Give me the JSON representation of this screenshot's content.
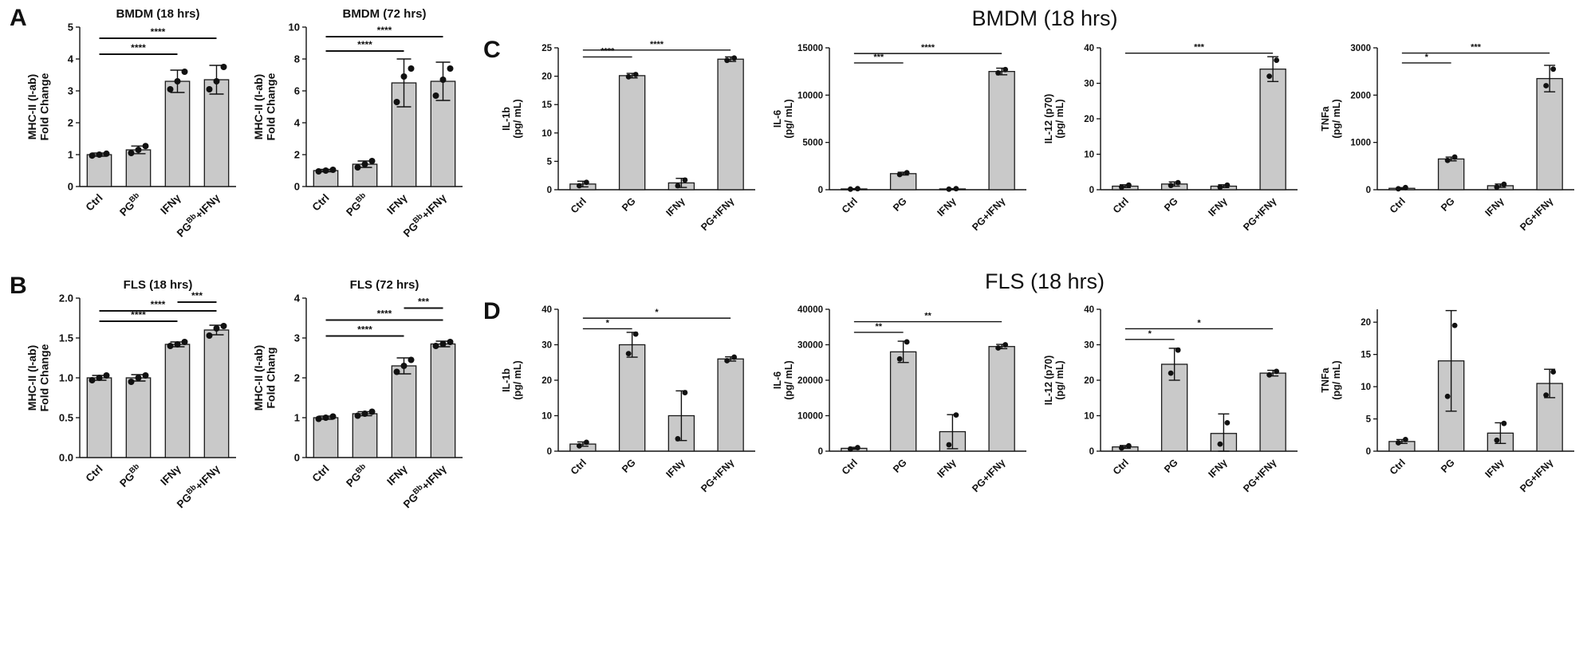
{
  "figure": {
    "background": "#ffffff",
    "bar_fill": "#c9c9c9",
    "bar_stroke": "#1a1a1a",
    "point_color": "#111111",
    "axis_color": "#111111"
  },
  "panels": {
    "A": {
      "label": "A"
    },
    "B": {
      "label": "B"
    },
    "C": {
      "label": "C",
      "title": "BMDM (18 hrs)"
    },
    "D": {
      "label": "D",
      "title": "FLS (18 hrs)"
    }
  },
  "chart_data": [
    {
      "id": "A1",
      "panel": "A",
      "type": "bar",
      "title": "BMDM (18 hrs)",
      "ylabel": [
        "MHC-II (I-ab)",
        "Fold Change"
      ],
      "ylim": [
        0,
        5
      ],
      "yticks": [
        0,
        1,
        2,
        3,
        4,
        5
      ],
      "ytick_labels": [
        "0",
        "1",
        "2",
        "3",
        "4",
        "5"
      ],
      "categories": [
        "Ctrl",
        "PG^Bb",
        "IFNγ",
        "PG^Bb+IFNγ"
      ],
      "values": [
        1.0,
        1.15,
        3.3,
        3.35
      ],
      "errors": [
        0.05,
        0.12,
        0.35,
        0.45
      ],
      "points": [
        [
          0.97,
          1.0,
          1.03
        ],
        [
          1.05,
          1.15,
          1.27
        ],
        [
          3.05,
          3.3,
          3.6
        ],
        [
          3.05,
          3.3,
          3.75
        ]
      ],
      "sig": [
        {
          "from": 0,
          "to": 2,
          "label": "****",
          "y": 4.15
        },
        {
          "from": 0,
          "to": 3,
          "label": "****",
          "y": 4.65
        }
      ]
    },
    {
      "id": "A2",
      "panel": "A",
      "type": "bar",
      "title": "BMDM (72 hrs)",
      "ylabel": [
        "MHC-II (I-ab)",
        "Fold Change"
      ],
      "ylim": [
        0,
        10
      ],
      "yticks": [
        0,
        2,
        4,
        6,
        8,
        10
      ],
      "ytick_labels": [
        "0",
        "2",
        "4",
        "6",
        "8",
        "10"
      ],
      "categories": [
        "Ctrl",
        "PG^Bb",
        "IFNγ",
        "PG^Bb+IFNγ"
      ],
      "values": [
        1.0,
        1.4,
        6.5,
        6.6
      ],
      "errors": [
        0.08,
        0.2,
        1.5,
        1.2
      ],
      "points": [
        [
          0.95,
          1.0,
          1.05
        ],
        [
          1.2,
          1.4,
          1.6
        ],
        [
          5.3,
          6.9,
          7.4
        ],
        [
          5.7,
          6.7,
          7.4
        ]
      ],
      "sig": [
        {
          "from": 0,
          "to": 2,
          "label": "****",
          "y": 8.5
        },
        {
          "from": 0,
          "to": 3,
          "label": "****",
          "y": 9.4
        }
      ]
    },
    {
      "id": "B1",
      "panel": "B",
      "type": "bar",
      "title": "FLS (18 hrs)",
      "ylabel": [
        "MHC-II (I-ab)",
        "Fold Change"
      ],
      "ylim": [
        0,
        2
      ],
      "yticks": [
        0,
        0.5,
        1,
        1.5,
        2
      ],
      "ytick_labels": [
        "0.0",
        "0.5",
        "1.0",
        "1.5",
        "2.0"
      ],
      "categories": [
        "Ctrl",
        "PG^Bb",
        "IFNγ",
        "PG^Bb+IFNγ"
      ],
      "values": [
        1.0,
        1.0,
        1.42,
        1.6
      ],
      "errors": [
        0.03,
        0.04,
        0.03,
        0.06
      ],
      "points": [
        [
          0.97,
          1.0,
          1.03
        ],
        [
          0.95,
          1.0,
          1.03
        ],
        [
          1.4,
          1.42,
          1.45
        ],
        [
          1.53,
          1.62,
          1.65
        ]
      ],
      "sig": [
        {
          "from": 0,
          "to": 2,
          "label": "****",
          "y": 1.71
        },
        {
          "from": 0,
          "to": 3,
          "label": "****",
          "y": 1.84
        },
        {
          "from": 2,
          "to": 3,
          "label": "***",
          "y": 1.95
        }
      ]
    },
    {
      "id": "B2",
      "panel": "B",
      "type": "bar",
      "title": "FLS (72 hrs)",
      "ylabel": [
        "MHC-II (I-ab)",
        "Fold Chang"
      ],
      "ylim": [
        0,
        4
      ],
      "yticks": [
        0,
        1,
        2,
        3,
        4
      ],
      "ytick_labels": [
        "0",
        "1",
        "2",
        "3",
        "4"
      ],
      "categories": [
        "Ctrl",
        "PG^Bb",
        "IFNγ",
        "PG^Bb+IFNγ"
      ],
      "values": [
        1.0,
        1.1,
        2.3,
        2.85
      ],
      "errors": [
        0.04,
        0.05,
        0.2,
        0.07
      ],
      "points": [
        [
          0.97,
          1.0,
          1.03
        ],
        [
          1.05,
          1.1,
          1.15
        ],
        [
          2.15,
          2.3,
          2.45
        ],
        [
          2.8,
          2.85,
          2.9
        ]
      ],
      "sig": [
        {
          "from": 0,
          "to": 2,
          "label": "****",
          "y": 3.05
        },
        {
          "from": 0,
          "to": 3,
          "label": "****",
          "y": 3.45
        },
        {
          "from": 2,
          "to": 3,
          "label": "***",
          "y": 3.75
        }
      ]
    },
    {
      "id": "C1",
      "panel": "C",
      "type": "bar",
      "title": "",
      "ylabel": [
        "IL-1b",
        "(pg/ mL)"
      ],
      "ylim": [
        0,
        25
      ],
      "yticks": [
        0,
        5,
        10,
        15,
        20,
        25
      ],
      "ytick_labels": [
        "0",
        "5",
        "10",
        "15",
        "20",
        "25"
      ],
      "categories": [
        "Ctrl",
        "PG",
        "IFNγ",
        "PG+IFNγ"
      ],
      "values": [
        1.0,
        20.1,
        1.2,
        23.0
      ],
      "errors": [
        0.5,
        0.4,
        0.8,
        0.4
      ],
      "points": [
        [
          0.7,
          1.3
        ],
        [
          19.9,
          20.3
        ],
        [
          0.7,
          1.7
        ],
        [
          22.8,
          23.2
        ]
      ],
      "sig": [
        {
          "from": 0,
          "to": 1,
          "label": "****",
          "y": 23.4
        },
        {
          "from": 0,
          "to": 3,
          "label": "****",
          "y": 24.6
        }
      ]
    },
    {
      "id": "C2",
      "panel": "C",
      "type": "bar",
      "title": "",
      "ylabel": [
        "IL-6",
        "(pg/ mL)"
      ],
      "ylim": [
        0,
        15000
      ],
      "yticks": [
        0,
        5000,
        10000,
        15000
      ],
      "ytick_labels": [
        "0",
        "5000",
        "10000",
        "15000"
      ],
      "categories": [
        "Ctrl",
        "PG",
        "IFNγ",
        "PG+IFNγ"
      ],
      "values": [
        80,
        1700,
        80,
        12500
      ],
      "errors": [
        40,
        150,
        40,
        350
      ],
      "points": [
        [
          60,
          110
        ],
        [
          1600,
          1800
        ],
        [
          60,
          110
        ],
        [
          12350,
          12700
        ]
      ],
      "sig": [
        {
          "from": 0,
          "to": 1,
          "label": "***",
          "y": 13400
        },
        {
          "from": 0,
          "to": 3,
          "label": "****",
          "y": 14400
        }
      ]
    },
    {
      "id": "C3",
      "panel": "C",
      "type": "bar",
      "title": "",
      "ylabel": [
        "IL-12 (p70)",
        "(pg/ mL)"
      ],
      "ylim": [
        0,
        40
      ],
      "yticks": [
        0,
        10,
        20,
        30,
        40
      ],
      "ytick_labels": [
        "0",
        "10",
        "20",
        "30",
        "40"
      ],
      "categories": [
        "Ctrl",
        "PG",
        "IFNγ",
        "PG+IFNγ"
      ],
      "values": [
        1.0,
        1.6,
        1.0,
        34
      ],
      "errors": [
        0.4,
        0.6,
        0.4,
        3.5
      ],
      "points": [
        [
          0.7,
          1.3
        ],
        [
          1.2,
          2.0
        ],
        [
          0.7,
          1.3
        ],
        [
          32,
          36.5
        ]
      ],
      "sig": [
        {
          "from": 0,
          "to": 3,
          "label": "***",
          "y": 38.5
        }
      ]
    },
    {
      "id": "C4",
      "panel": "C",
      "type": "bar",
      "title": "",
      "ylabel": [
        "TNFa",
        "(pg/ mL)"
      ],
      "ylim": [
        0,
        3000
      ],
      "yticks": [
        0,
        1000,
        2000,
        3000
      ],
      "ytick_labels": [
        "0",
        "1000",
        "2000",
        "3000"
      ],
      "categories": [
        "Ctrl",
        "PG",
        "IFNγ",
        "PG+IFNγ"
      ],
      "values": [
        30,
        650,
        85,
        2350
      ],
      "errors": [
        15,
        40,
        35,
        280
      ],
      "points": [
        [
          20,
          45
        ],
        [
          620,
          690
        ],
        [
          55,
          115
        ],
        [
          2200,
          2550
        ]
      ],
      "sig": [
        {
          "from": 0,
          "to": 1,
          "label": "*",
          "y": 2680
        },
        {
          "from": 0,
          "to": 3,
          "label": "***",
          "y": 2890
        }
      ]
    },
    {
      "id": "D1",
      "panel": "D",
      "type": "bar",
      "title": "",
      "ylabel": [
        "IL-1b",
        "(pg/ mL)"
      ],
      "ylim": [
        0,
        40
      ],
      "yticks": [
        0,
        10,
        20,
        30,
        40
      ],
      "ytick_labels": [
        "0",
        "10",
        "20",
        "30",
        "40"
      ],
      "categories": [
        "Ctrl",
        "PG",
        "IFNγ",
        "PG+IFNγ"
      ],
      "values": [
        2,
        30,
        10,
        26
      ],
      "errors": [
        0.6,
        3.5,
        7,
        0.6
      ],
      "points": [
        [
          1.5,
          2.5
        ],
        [
          27.5,
          33
        ],
        [
          3.5,
          16.5
        ],
        [
          25.5,
          26.5
        ]
      ],
      "sig": [
        {
          "from": 0,
          "to": 1,
          "label": "*",
          "y": 34.5
        },
        {
          "from": 0,
          "to": 3,
          "label": "*",
          "y": 37.5
        }
      ]
    },
    {
      "id": "D2",
      "panel": "D",
      "type": "bar",
      "title": "",
      "ylabel": [
        "IL-6",
        "(pg/ mL)"
      ],
      "ylim": [
        0,
        40000
      ],
      "yticks": [
        0,
        10000,
        20000,
        30000,
        40000
      ],
      "ytick_labels": [
        "0",
        "10000",
        "20000",
        "30000",
        "40000"
      ],
      "categories": [
        "Ctrl",
        "PG",
        "IFNγ",
        "PG+IFNγ"
      ],
      "values": [
        800,
        28000,
        5500,
        29500
      ],
      "errors": [
        300,
        3000,
        4800,
        600
      ],
      "points": [
        [
          600,
          1000
        ],
        [
          26000,
          30800
        ],
        [
          1800,
          10200
        ],
        [
          29100,
          30000
        ]
      ],
      "sig": [
        {
          "from": 0,
          "to": 1,
          "label": "**",
          "y": 33500
        },
        {
          "from": 0,
          "to": 3,
          "label": "**",
          "y": 36500
        }
      ]
    },
    {
      "id": "D3",
      "panel": "D",
      "type": "bar",
      "title": "",
      "ylabel": [
        "IL-12 (p70)",
        "(pg/ mL)"
      ],
      "ylim": [
        0,
        40
      ],
      "yticks": [
        0,
        10,
        20,
        30,
        40
      ],
      "ytick_labels": [
        "0",
        "10",
        "20",
        "30",
        "40"
      ],
      "categories": [
        "Ctrl",
        "PG",
        "IFNγ",
        "PG+IFNγ"
      ],
      "values": [
        1.2,
        24.5,
        5,
        22
      ],
      "errors": [
        0.4,
        4.5,
        5.5,
        0.8
      ],
      "points": [
        [
          0.9,
          1.5
        ],
        [
          22,
          28.5
        ],
        [
          2,
          8
        ],
        [
          21.5,
          22.5
        ]
      ],
      "sig": [
        {
          "from": 0,
          "to": 1,
          "label": "*",
          "y": 31.5
        },
        {
          "from": 0,
          "to": 3,
          "label": "*",
          "y": 34.5
        }
      ]
    },
    {
      "id": "D4",
      "panel": "D",
      "type": "bar",
      "title": "",
      "ylabel": [
        "TNFa",
        "(pg/ mL)"
      ],
      "ylim": [
        0,
        22
      ],
      "yticks": [
        0,
        5,
        10,
        15,
        20
      ],
      "ytick_labels": [
        "0",
        "5",
        "10",
        "15",
        "20"
      ],
      "categories": [
        "Ctrl",
        "PG",
        "IFNγ",
        "PG+IFNγ"
      ],
      "values": [
        1.5,
        14,
        2.8,
        10.5
      ],
      "errors": [
        0.3,
        7.8,
        1.6,
        2.2
      ],
      "points": [
        [
          1.3,
          1.8
        ],
        [
          8.5,
          19.5
        ],
        [
          1.7,
          4.3
        ],
        [
          8.7,
          12.3
        ]
      ],
      "sig": []
    }
  ]
}
